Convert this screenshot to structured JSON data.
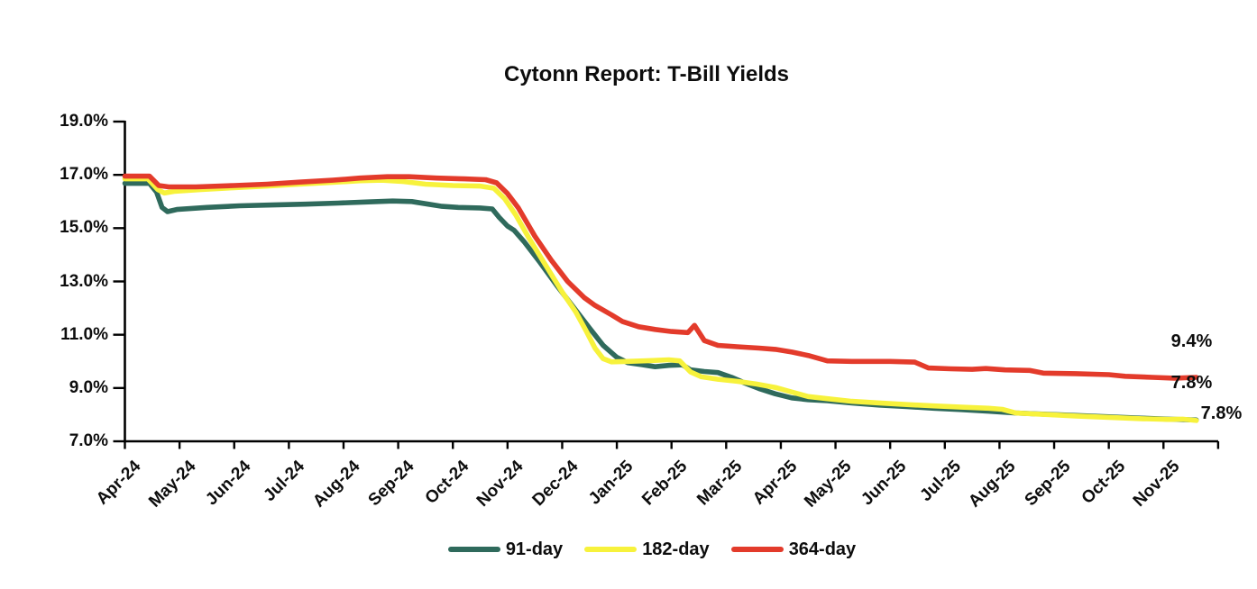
{
  "title": "Cytonn Report: T-Bill Yields",
  "chart_data": {
    "type": "line",
    "title": "Cytonn Report: T-Bill Yields",
    "legend_position": "bottom-center",
    "grid": false,
    "background": "#FFFFFF",
    "text_color": "#0D0D0D",
    "axis_color": "#000000",
    "x_axis": {
      "categories": [
        "Apr-24",
        "May-24",
        "Jun-24",
        "Jul-24",
        "Aug-24",
        "Sep-24",
        "Oct-24",
        "Nov-24",
        "Dec-24",
        "Jan-25",
        "Feb-25",
        "Mar-25",
        "Apr-25",
        "May-25",
        "Jun-25",
        "Jul-25",
        "Aug-25",
        "Sep-25",
        "Oct-25",
        "Nov-25"
      ],
      "label_rotation_deg": -45,
      "x_unit": "months since Apr-24 (category width = 1)"
    },
    "y_axis": {
      "tick_labels": [
        "19.0%",
        "17.0%",
        "15.0%",
        "13.0%",
        "11.0%",
        "9.0%",
        "7.0%"
      ],
      "tick_values": [
        19,
        17,
        15,
        13,
        11,
        9,
        7
      ],
      "min": 7.0,
      "max": 19.0,
      "unit": "%"
    },
    "series": [
      {
        "name": "91-day",
        "color": "#2F6A5C",
        "end_label": "7.8%",
        "points": [
          [
            0,
            16.68
          ],
          [
            0.45,
            16.68
          ],
          [
            0.58,
            16.35
          ],
          [
            0.68,
            15.78
          ],
          [
            0.78,
            15.62
          ],
          [
            0.95,
            15.7
          ],
          [
            1.5,
            15.78
          ],
          [
            2.1,
            15.84
          ],
          [
            2.7,
            15.87
          ],
          [
            3.3,
            15.9
          ],
          [
            3.9,
            15.94
          ],
          [
            4.4,
            15.98
          ],
          [
            4.9,
            16.02
          ],
          [
            5.25,
            16.0
          ],
          [
            5.55,
            15.9
          ],
          [
            5.8,
            15.82
          ],
          [
            6.1,
            15.78
          ],
          [
            6.5,
            15.76
          ],
          [
            6.72,
            15.72
          ],
          [
            6.85,
            15.4
          ],
          [
            7.0,
            15.08
          ],
          [
            7.12,
            14.92
          ],
          [
            7.3,
            14.5
          ],
          [
            7.6,
            13.7
          ],
          [
            7.9,
            12.85
          ],
          [
            8.2,
            12.05
          ],
          [
            8.5,
            11.25
          ],
          [
            8.75,
            10.6
          ],
          [
            9.0,
            10.15
          ],
          [
            9.2,
            9.95
          ],
          [
            9.45,
            9.88
          ],
          [
            9.7,
            9.8
          ],
          [
            9.95,
            9.85
          ],
          [
            10.2,
            9.87
          ],
          [
            10.35,
            9.68
          ],
          [
            10.6,
            9.62
          ],
          [
            10.85,
            9.58
          ],
          [
            11.1,
            9.4
          ],
          [
            11.35,
            9.18
          ],
          [
            11.6,
            8.98
          ],
          [
            11.9,
            8.78
          ],
          [
            12.2,
            8.63
          ],
          [
            12.5,
            8.56
          ],
          [
            12.85,
            8.52
          ],
          [
            13.3,
            8.44
          ],
          [
            13.8,
            8.36
          ],
          [
            14.3,
            8.3
          ],
          [
            14.8,
            8.24
          ],
          [
            15.3,
            8.19
          ],
          [
            15.8,
            8.13
          ],
          [
            16.3,
            8.06
          ],
          [
            16.9,
            8.01
          ],
          [
            17.5,
            7.96
          ],
          [
            18.0,
            7.92
          ],
          [
            18.6,
            7.87
          ],
          [
            19.1,
            7.83
          ],
          [
            19.6,
            7.8
          ]
        ]
      },
      {
        "name": "182-day",
        "color": "#F7F23C",
        "end_label": "7.8%",
        "points": [
          [
            0,
            16.85
          ],
          [
            0.42,
            16.85
          ],
          [
            0.6,
            16.45
          ],
          [
            0.72,
            16.32
          ],
          [
            0.9,
            16.38
          ],
          [
            1.4,
            16.45
          ],
          [
            2.0,
            16.52
          ],
          [
            2.6,
            16.58
          ],
          [
            3.2,
            16.65
          ],
          [
            3.8,
            16.72
          ],
          [
            4.3,
            16.78
          ],
          [
            4.7,
            16.8
          ],
          [
            5.1,
            16.75
          ],
          [
            5.5,
            16.65
          ],
          [
            6.0,
            16.6
          ],
          [
            6.5,
            16.58
          ],
          [
            6.75,
            16.5
          ],
          [
            6.95,
            16.1
          ],
          [
            7.15,
            15.5
          ],
          [
            7.4,
            14.6
          ],
          [
            7.7,
            13.6
          ],
          [
            8.0,
            12.6
          ],
          [
            8.25,
            11.85
          ],
          [
            8.45,
            11.1
          ],
          [
            8.6,
            10.5
          ],
          [
            8.75,
            10.1
          ],
          [
            8.9,
            9.98
          ],
          [
            9.2,
            10.0
          ],
          [
            9.6,
            10.03
          ],
          [
            9.95,
            10.06
          ],
          [
            10.15,
            10.02
          ],
          [
            10.35,
            9.6
          ],
          [
            10.55,
            9.42
          ],
          [
            10.85,
            9.33
          ],
          [
            11.2,
            9.25
          ],
          [
            11.55,
            9.15
          ],
          [
            11.9,
            9.02
          ],
          [
            12.2,
            8.85
          ],
          [
            12.5,
            8.68
          ],
          [
            12.85,
            8.6
          ],
          [
            13.3,
            8.5
          ],
          [
            13.8,
            8.44
          ],
          [
            14.3,
            8.38
          ],
          [
            14.8,
            8.33
          ],
          [
            15.3,
            8.28
          ],
          [
            15.8,
            8.24
          ],
          [
            16.05,
            8.2
          ],
          [
            16.3,
            8.06
          ],
          [
            16.8,
            8.01
          ],
          [
            17.4,
            7.95
          ],
          [
            18.0,
            7.9
          ],
          [
            18.6,
            7.85
          ],
          [
            19.1,
            7.82
          ],
          [
            19.35,
            7.83
          ],
          [
            19.6,
            7.78
          ]
        ]
      },
      {
        "name": "364-day",
        "color": "#E33B2B",
        "end_label": "9.4%",
        "points": [
          [
            0,
            16.95
          ],
          [
            0.45,
            16.95
          ],
          [
            0.62,
            16.6
          ],
          [
            0.8,
            16.55
          ],
          [
            1.3,
            16.55
          ],
          [
            2.0,
            16.6
          ],
          [
            2.6,
            16.65
          ],
          [
            3.2,
            16.73
          ],
          [
            3.8,
            16.8
          ],
          [
            4.3,
            16.88
          ],
          [
            4.8,
            16.93
          ],
          [
            5.2,
            16.93
          ],
          [
            5.7,
            16.88
          ],
          [
            6.2,
            16.85
          ],
          [
            6.6,
            16.82
          ],
          [
            6.8,
            16.7
          ],
          [
            7.0,
            16.3
          ],
          [
            7.2,
            15.75
          ],
          [
            7.5,
            14.7
          ],
          [
            7.8,
            13.8
          ],
          [
            8.1,
            13.0
          ],
          [
            8.4,
            12.4
          ],
          [
            8.6,
            12.1
          ],
          [
            8.9,
            11.75
          ],
          [
            9.1,
            11.5
          ],
          [
            9.4,
            11.3
          ],
          [
            9.7,
            11.2
          ],
          [
            10.0,
            11.12
          ],
          [
            10.3,
            11.08
          ],
          [
            10.42,
            11.35
          ],
          [
            10.6,
            10.78
          ],
          [
            10.85,
            10.6
          ],
          [
            11.2,
            10.55
          ],
          [
            11.6,
            10.5
          ],
          [
            11.9,
            10.45
          ],
          [
            12.2,
            10.35
          ],
          [
            12.5,
            10.22
          ],
          [
            12.85,
            10.02
          ],
          [
            13.3,
            10.0
          ],
          [
            14.0,
            10.0
          ],
          [
            14.45,
            9.97
          ],
          [
            14.7,
            9.75
          ],
          [
            15.1,
            9.72
          ],
          [
            15.5,
            9.7
          ],
          [
            15.75,
            9.73
          ],
          [
            16.1,
            9.68
          ],
          [
            16.55,
            9.66
          ],
          [
            16.8,
            9.56
          ],
          [
            17.4,
            9.54
          ],
          [
            18.0,
            9.5
          ],
          [
            18.3,
            9.44
          ],
          [
            18.8,
            9.4
          ],
          [
            19.2,
            9.37
          ],
          [
            19.6,
            9.4
          ]
        ]
      }
    ]
  }
}
